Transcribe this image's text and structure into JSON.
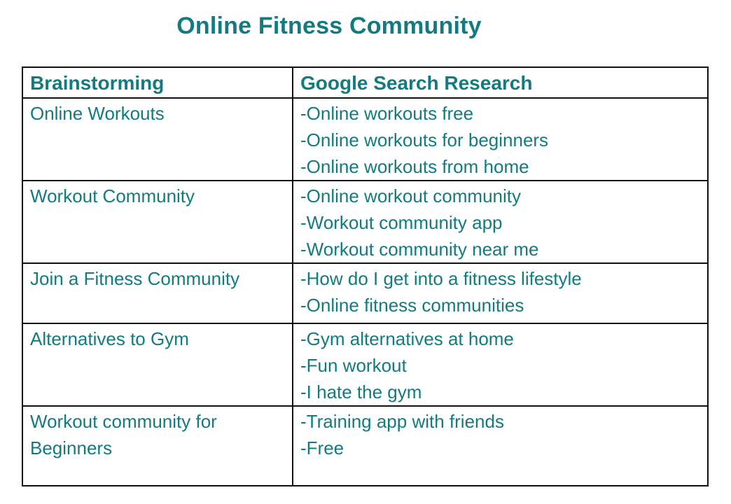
{
  "title": "Online Fitness Community",
  "table": {
    "headers": [
      "Brainstorming",
      "Google Search Research"
    ],
    "rows": [
      {
        "brainstorm": [
          "Online Workouts"
        ],
        "research": [
          "-Online workouts free",
          "-Online workouts for beginners",
          "-Online workouts from home"
        ]
      },
      {
        "brainstorm": [
          "Workout Community"
        ],
        "research": [
          "-Online workout community",
          "-Workout community app",
          "-Workout community near me"
        ]
      },
      {
        "brainstorm": [
          "Join a Fitness Community"
        ],
        "research": [
          "-How do I get into a fitness lifestyle",
          "-Online fitness communities"
        ]
      },
      {
        "brainstorm": [
          "Alternatives to Gym"
        ],
        "research": [
          "-Gym alternatives at home",
          "-Fun workout",
          "-I hate the gym"
        ]
      },
      {
        "brainstorm": [
          "Workout community for",
          "Beginners"
        ],
        "research": [
          "-Training app with friends",
          "-Free"
        ]
      }
    ]
  },
  "colors": {
    "text": "#137b80",
    "border": "#111111"
  }
}
